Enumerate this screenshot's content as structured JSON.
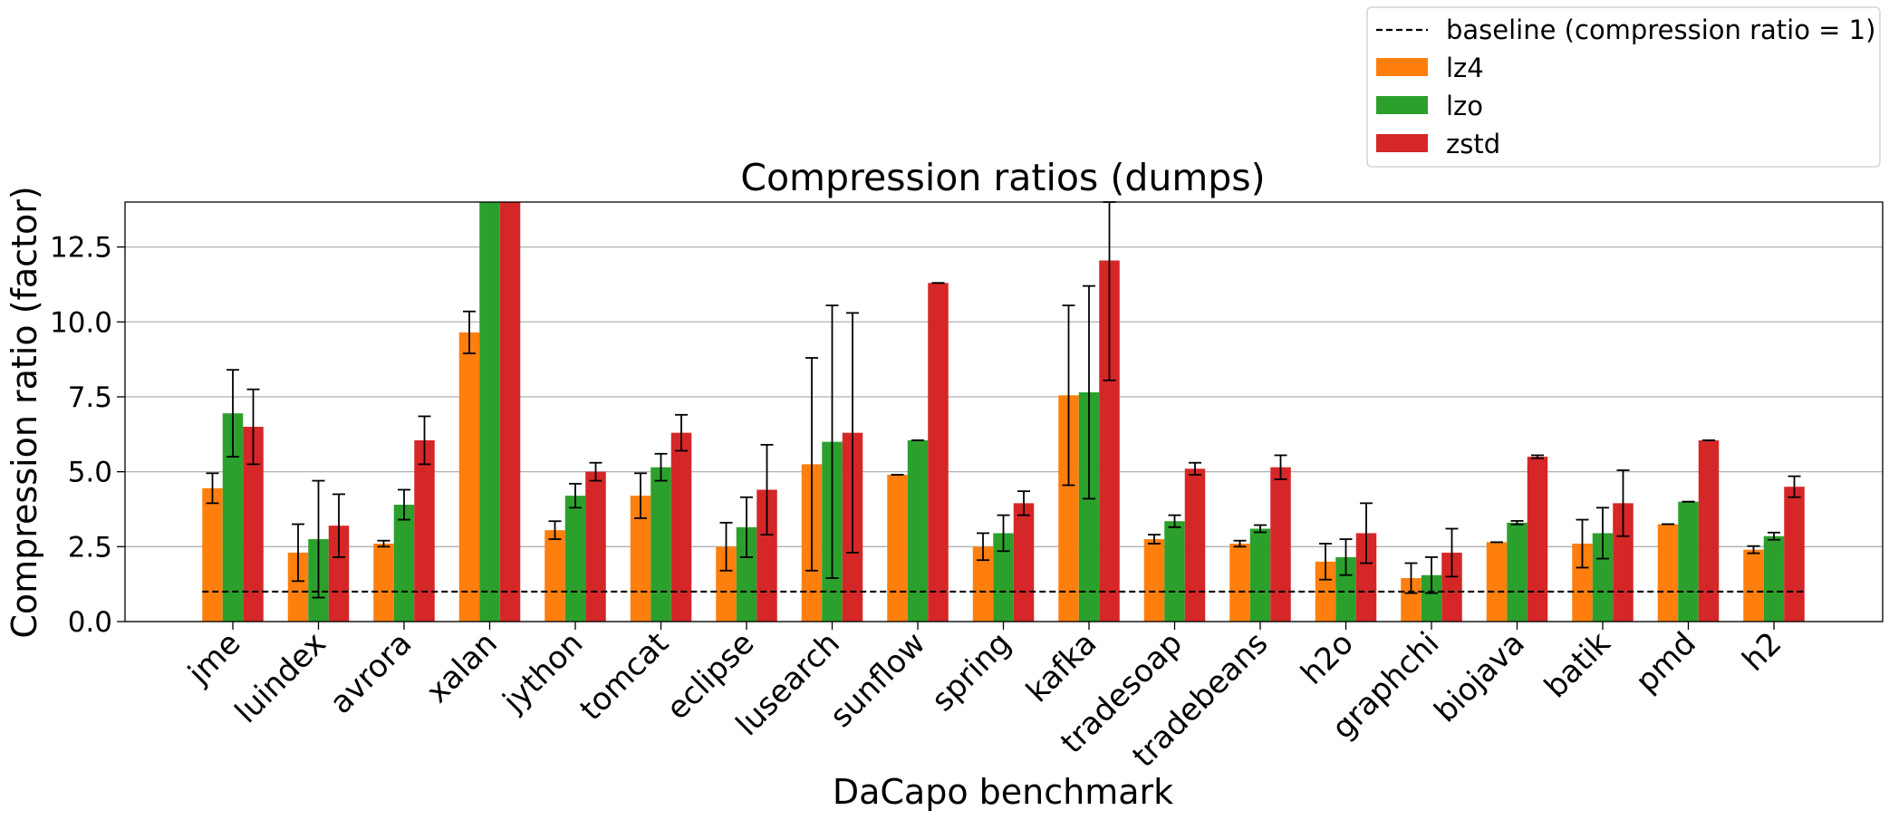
{
  "chart_data": {
    "type": "bar",
    "title": "Compression ratios (dumps)",
    "xlabel": "DaCapo benchmark",
    "ylabel": "Compression ratio (factor)",
    "ylim": [
      0,
      14
    ],
    "yticks": [
      0.0,
      2.5,
      5.0,
      7.5,
      10.0,
      12.5
    ],
    "ytick_labels": [
      "0.0",
      "2.5",
      "5.0",
      "7.5",
      "10.0",
      "12.5"
    ],
    "grid": "horizontal",
    "legend_position": "top-right",
    "categories": [
      "jme",
      "luindex",
      "avrora",
      "xalan",
      "jython",
      "tomcat",
      "eclipse",
      "lusearch",
      "sunflow",
      "spring",
      "kafka",
      "tradesoap",
      "tradebeans",
      "h2o",
      "graphchi",
      "biojava",
      "batik",
      "pmd",
      "h2"
    ],
    "series": [
      {
        "name": "lz4",
        "color": "#ff7f0e",
        "values": [
          4.45,
          2.3,
          2.6,
          9.65,
          3.05,
          4.2,
          2.5,
          5.25,
          4.9,
          2.5,
          7.55,
          2.75,
          2.6,
          2.0,
          1.45,
          2.65,
          2.6,
          3.25,
          2.4
        ],
        "errors": [
          0.5,
          0.95,
          0.1,
          0.7,
          0.3,
          0.75,
          0.8,
          3.55,
          0.0,
          0.45,
          3.0,
          0.15,
          0.1,
          0.6,
          0.5,
          0.0,
          0.8,
          0.0,
          0.12
        ]
      },
      {
        "name": "lzo",
        "color": "#2ca02c",
        "values": [
          6.95,
          2.75,
          3.9,
          14.0,
          4.2,
          5.15,
          3.15,
          6.0,
          6.05,
          2.95,
          7.65,
          3.35,
          3.1,
          2.15,
          1.55,
          3.3,
          2.95,
          4.0,
          2.85
        ],
        "errors": [
          1.45,
          1.95,
          0.5,
          0.0,
          0.4,
          0.45,
          1.0,
          4.55,
          0.0,
          0.6,
          3.55,
          0.2,
          0.12,
          0.6,
          0.6,
          0.06,
          0.85,
          0.0,
          0.12
        ]
      },
      {
        "name": "zstd",
        "color": "#d62728",
        "values": [
          6.5,
          3.2,
          6.05,
          14.0,
          5.0,
          6.3,
          4.4,
          6.3,
          11.3,
          3.95,
          12.05,
          5.1,
          5.15,
          2.95,
          2.3,
          5.5,
          3.95,
          6.05,
          4.5
        ],
        "errors": [
          1.25,
          1.05,
          0.8,
          0.0,
          0.3,
          0.6,
          1.5,
          4.0,
          0.0,
          0.4,
          4.0,
          0.2,
          0.4,
          1.0,
          0.8,
          0.05,
          1.1,
          0.0,
          0.35
        ]
      }
    ],
    "baseline": {
      "label": "baseline (compression ratio = 1)",
      "value": 1,
      "color": "#000000",
      "style": "dashed"
    }
  }
}
